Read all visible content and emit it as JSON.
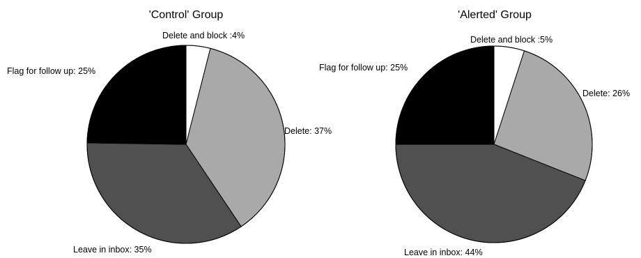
{
  "chart_data": [
    {
      "type": "pie",
      "title": "'Control' Group",
      "colors": [
        "#ffffff",
        "#a9a9a9",
        "#505050",
        "#000000"
      ],
      "slices": [
        {
          "label": "Delete and block :4%",
          "value": 4
        },
        {
          "label": "Delete: 37%",
          "value": 37
        },
        {
          "label": "Leave in inbox: 35%",
          "value": 35
        },
        {
          "label": "Flag for follow up: 25%",
          "value": 25
        }
      ]
    },
    {
      "type": "pie",
      "title": "'Alerted' Group",
      "colors": [
        "#ffffff",
        "#a9a9a9",
        "#505050",
        "#000000"
      ],
      "slices": [
        {
          "label": "Delete and block :5%",
          "value": 5
        },
        {
          "label": "Delete: 26%",
          "value": 26
        },
        {
          "label": "Leave in inbox: 44%",
          "value": 44
        },
        {
          "label": "Flag for follow up: 25%",
          "value": 25
        }
      ]
    }
  ]
}
